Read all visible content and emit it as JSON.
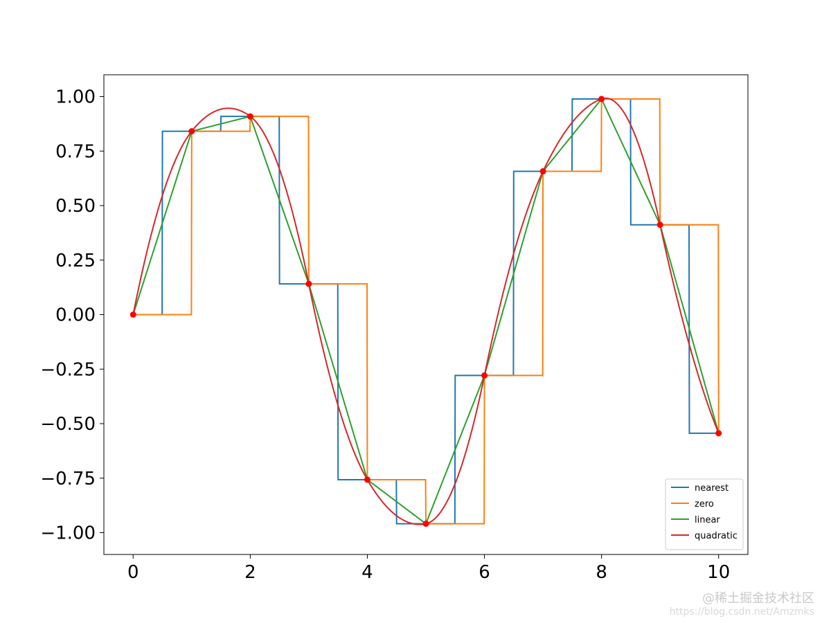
{
  "chart_data": {
    "type": "line",
    "title": "",
    "xlabel": "",
    "ylabel": "",
    "xlim": [
      -0.5,
      10.5
    ],
    "ylim": [
      -1.1,
      1.1
    ],
    "x_ticks": [
      0,
      2,
      4,
      6,
      8,
      10
    ],
    "y_ticks": [
      1.0,
      0.75,
      0.5,
      0.25,
      0.0,
      -0.25,
      -0.5,
      -0.75,
      -1.0
    ],
    "x_tick_labels": [
      "0",
      "2",
      "4",
      "6",
      "8",
      "10"
    ],
    "y_tick_labels": [
      "1.00",
      "0.75",
      "0.50",
      "0.25",
      "0.00",
      "−0.25",
      "−0.50",
      "−0.75",
      "−1.00"
    ],
    "grid": false,
    "legend_position": "lower-right",
    "points": {
      "x": [
        0,
        1,
        2,
        3,
        4,
        5,
        6,
        7,
        8,
        9,
        10
      ],
      "y": [
        0.0,
        0.841,
        0.909,
        0.141,
        -0.757,
        -0.959,
        -0.279,
        0.657,
        0.989,
        0.412,
        -0.544
      ],
      "color": "#ff0000"
    },
    "series": [
      {
        "name": "nearest",
        "color": "#1f77b4",
        "kind": "nearest"
      },
      {
        "name": "zero",
        "color": "#ff7f0e",
        "kind": "zero"
      },
      {
        "name": "linear",
        "color": "#2ca02c",
        "kind": "linear"
      },
      {
        "name": "quadratic",
        "color": "#d62728",
        "kind": "quadratic"
      }
    ]
  },
  "watermark": {
    "line1": "@稀土掘金技术社区",
    "line2": "https://blog.csdn.net/Amzmks"
  }
}
